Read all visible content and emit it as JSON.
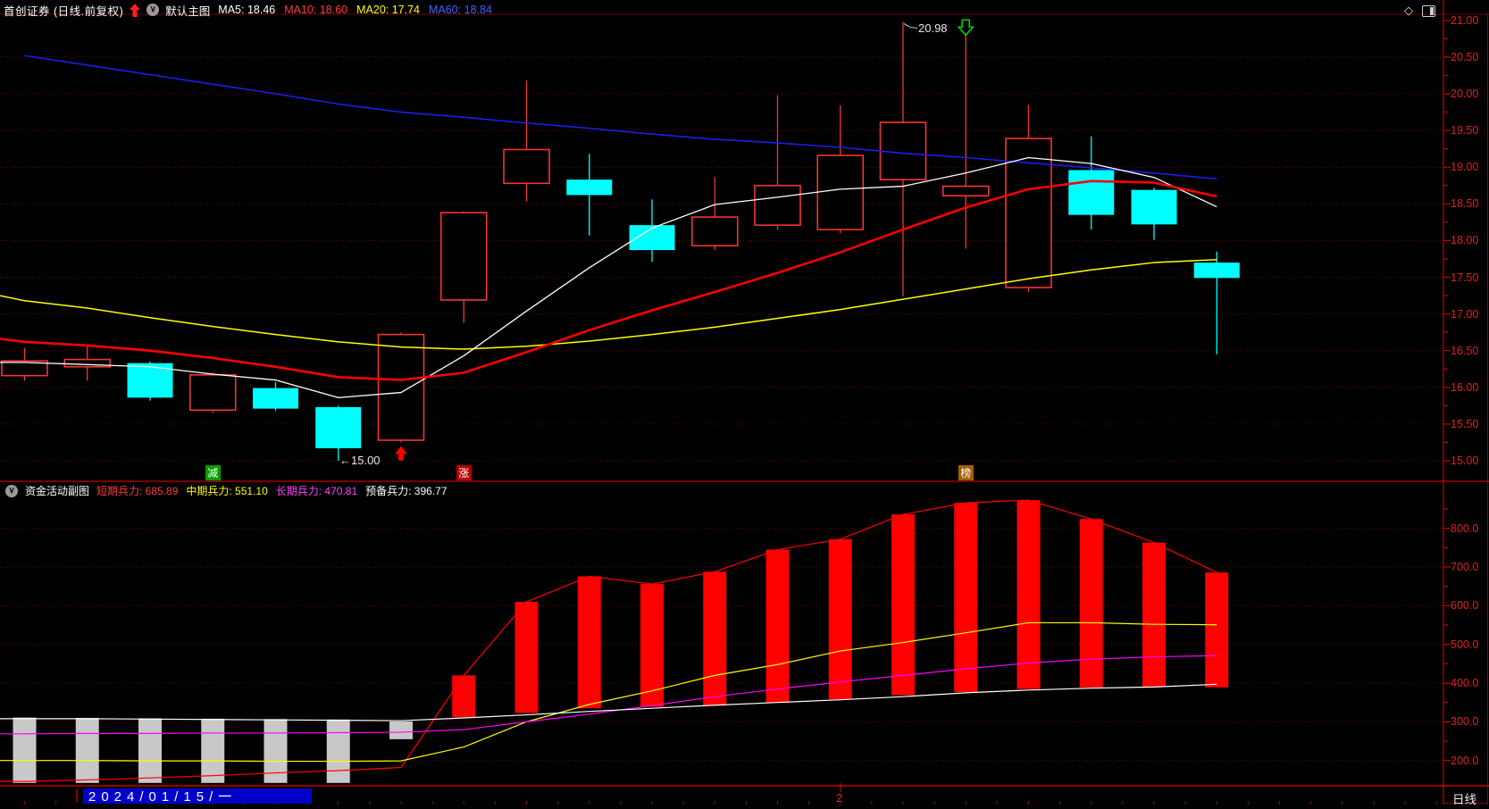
{
  "palette": {
    "bg": "#000000",
    "up_candle": "#f23535",
    "down_candle": "#00ffff",
    "ma5": "#ffffff",
    "ma10": "#ff0000",
    "ma20": "#ffff00",
    "ma60": "#1d1dee",
    "axis_line": "#c40000",
    "grid": "#7d0000",
    "frame": "#a00000",
    "gray_bar": "#c8c8c8",
    "red_bar": "#ff0000",
    "sub_short": "#ff0000",
    "sub_mid": "#ffff00",
    "sub_long": "#ff00ff",
    "sub_reserve": "#ffffff",
    "label_red": "#e22020"
  },
  "icons": {
    "diamond": "◇",
    "chevron": "∨"
  },
  "header": {
    "title": "首创证券 (日线.前复权)",
    "overlay_label": "默认主图",
    "ma_legend": [
      {
        "name": "MA5:",
        "value": "18.46",
        "color": "#ffffff"
      },
      {
        "name": "MA10:",
        "value": "18.60",
        "color": "#ff3b3b"
      },
      {
        "name": "MA20:",
        "value": "17.74",
        "color": "#ffff00"
      },
      {
        "name": "MA60:",
        "value": "18.84",
        "color": "#3f62ff"
      }
    ]
  },
  "main_chart": {
    "y_axis_labels": [
      "21.00",
      "20.50",
      "20.00",
      "19.50",
      "19.00",
      "18.50",
      "18.00",
      "17.50",
      "17.00",
      "16.50",
      "16.00",
      "15.50",
      "15.00"
    ],
    "low_annotation": "←15.00",
    "high_annotation": "20.98",
    "event_tags": [
      {
        "text": "减",
        "bg": "#00a000",
        "slot": 4
      },
      {
        "text": "涨",
        "bg": "#b00000",
        "slot": 8
      },
      {
        "text": "榜",
        "bg": "#a26000",
        "slot": 16
      }
    ]
  },
  "sub_chart": {
    "title": "资金活动副图",
    "metrics": [
      {
        "name": "短期兵力:",
        "value": "685.89",
        "color": "#ff3b3b"
      },
      {
        "name": "中期兵力:",
        "value": "551.10",
        "color": "#ffff00"
      },
      {
        "name": "长期兵力:",
        "value": "470.81",
        "color": "#ff45ff"
      },
      {
        "name": "预备兵力:",
        "value": "396.77",
        "color": "#ffffff"
      }
    ],
    "y_axis_labels": [
      "800.0",
      "700.0",
      "600.0",
      "500.0",
      "400.0",
      "300.0",
      "200.0"
    ]
  },
  "status_bar": {
    "date": "2024/01/15/一",
    "month_label": "2",
    "period": "日线"
  },
  "chart_data": [
    {
      "type": "candlestick",
      "title": "首创证券 日线 前复权",
      "ylim": [
        15.0,
        21.0
      ],
      "y_ticks": [
        "21.00",
        "20.50",
        "20.00",
        "19.50",
        "19.00",
        "18.50",
        "18.00",
        "17.50",
        "17.00",
        "16.50",
        "16.00",
        "15.50",
        "15.00"
      ],
      "ohlc": [
        [
          16.16,
          16.54,
          16.09,
          16.36
        ],
        [
          16.28,
          16.57,
          16.09,
          16.38
        ],
        [
          16.33,
          16.35,
          15.82,
          15.86
        ],
        [
          15.69,
          16.2,
          15.65,
          16.17
        ],
        [
          15.99,
          16.07,
          15.68,
          15.71
        ],
        [
          15.73,
          15.75,
          15.0,
          15.17
        ],
        [
          15.28,
          16.75,
          15.25,
          16.72
        ],
        [
          17.19,
          18.4,
          16.88,
          18.38
        ],
        [
          18.78,
          20.18,
          18.53,
          19.24
        ],
        [
          18.83,
          19.18,
          18.07,
          18.62
        ],
        [
          18.21,
          18.56,
          17.71,
          17.87
        ],
        [
          17.93,
          18.87,
          17.87,
          18.32
        ],
        [
          18.21,
          19.98,
          18.15,
          18.75
        ],
        [
          18.15,
          19.84,
          18.1,
          19.16
        ],
        [
          18.83,
          20.98,
          17.24,
          19.61
        ],
        [
          18.61,
          20.8,
          17.89,
          18.74
        ],
        [
          17.36,
          19.85,
          17.3,
          19.39
        ],
        [
          18.96,
          19.42,
          18.15,
          18.35
        ],
        [
          18.69,
          18.72,
          18.01,
          18.22
        ],
        [
          17.7,
          17.85,
          16.45,
          17.49
        ]
      ],
      "ma5": [
        16.34,
        16.31,
        16.28,
        16.18,
        16.1,
        15.86,
        15.93,
        16.43,
        17.04,
        17.63,
        18.17,
        18.49,
        18.59,
        18.7,
        18.74,
        18.92,
        19.13,
        19.05,
        18.86,
        18.46
      ],
      "ma10": [
        16.62,
        16.57,
        16.5,
        16.4,
        16.28,
        16.14,
        16.1,
        16.2,
        16.48,
        16.78,
        17.05,
        17.3,
        17.56,
        17.84,
        18.15,
        18.45,
        18.7,
        18.81,
        18.79,
        18.6
      ],
      "ma20": [
        17.18,
        17.08,
        16.95,
        16.83,
        16.72,
        16.62,
        16.55,
        16.52,
        16.56,
        16.63,
        16.72,
        16.82,
        16.94,
        17.06,
        17.2,
        17.34,
        17.48,
        17.6,
        17.7,
        17.74
      ],
      "ma60": [
        20.52,
        20.39,
        20.26,
        20.13,
        20.0,
        19.86,
        19.75,
        19.68,
        19.6,
        19.53,
        19.45,
        19.38,
        19.33,
        19.27,
        19.19,
        19.13,
        19.06,
        18.99,
        18.92,
        18.84
      ],
      "ma_lead": {
        "ma5": 16.34,
        "ma10": 16.66,
        "ma20": 17.25
      },
      "annotations": [
        {
          "kind": "low",
          "text": "15.00",
          "slot": 6,
          "price": 15.0
        },
        {
          "kind": "high",
          "text": "20.98",
          "slot": 15,
          "price": 20.98
        }
      ],
      "markers": [
        {
          "shape": "up-arrow",
          "slot": 7,
          "color": "#ff0000"
        },
        {
          "shape": "down-arrow",
          "slot": 16,
          "color": "#00d000"
        }
      ]
    },
    {
      "type": "bar",
      "title": "资金活动副图",
      "ylim": [
        130,
        900
      ],
      "y_ticks": [
        "800.0",
        "700.0",
        "600.0",
        "500.0",
        "400.0",
        "300.0",
        "200.0"
      ],
      "bars": [
        {
          "lo": 142,
          "hi": 311,
          "color": "gray"
        },
        {
          "lo": 142,
          "hi": 310,
          "color": "gray"
        },
        {
          "lo": 142,
          "hi": 309,
          "color": "gray"
        },
        {
          "lo": 142,
          "hi": 308,
          "color": "gray"
        },
        {
          "lo": 142,
          "hi": 307,
          "color": "gray"
        },
        {
          "lo": 142,
          "hi": 306,
          "color": "gray"
        },
        {
          "lo": 255,
          "hi": 301,
          "color": "gray"
        },
        {
          "lo": 312,
          "hi": 420,
          "color": "red"
        },
        {
          "lo": 323,
          "hi": 610,
          "color": "red"
        },
        {
          "lo": 335,
          "hi": 676,
          "color": "red"
        },
        {
          "lo": 339,
          "hi": 656,
          "color": "red"
        },
        {
          "lo": 342,
          "hi": 688,
          "color": "red"
        },
        {
          "lo": 350,
          "hi": 745,
          "color": "red"
        },
        {
          "lo": 358,
          "hi": 772,
          "color": "red"
        },
        {
          "lo": 369,
          "hi": 836,
          "color": "red"
        },
        {
          "lo": 377,
          "hi": 866,
          "color": "red"
        },
        {
          "lo": 385,
          "hi": 873,
          "color": "red"
        },
        {
          "lo": 389,
          "hi": 824,
          "color": "red"
        },
        {
          "lo": 390,
          "hi": 763,
          "color": "red"
        },
        {
          "lo": 389,
          "hi": 686,
          "color": "red"
        }
      ],
      "lines": {
        "short": [
          146,
          150,
          155,
          161,
          168,
          174,
          182,
          420,
          610,
          676,
          656,
          688,
          745,
          772,
          836,
          866,
          873,
          824,
          763,
          686
        ],
        "mid": [
          200,
          200,
          199,
          199,
          198,
          198,
          199,
          235,
          300,
          345,
          380,
          420,
          448,
          483,
          505,
          530,
          556,
          556,
          552,
          551
        ],
        "long": [
          269,
          270,
          270,
          271,
          271,
          272,
          273,
          280,
          300,
          320,
          342,
          365,
          385,
          403,
          420,
          437,
          452,
          462,
          468,
          471
        ],
        "reserve": [
          308,
          308,
          307,
          306,
          305,
          304,
          303,
          310,
          318,
          327,
          335,
          343,
          350,
          357,
          365,
          375,
          382,
          387,
          390,
          397
        ]
      },
      "legend": [
        "短期兵力",
        "中期兵力",
        "长期兵力",
        "预备兵力"
      ]
    }
  ]
}
